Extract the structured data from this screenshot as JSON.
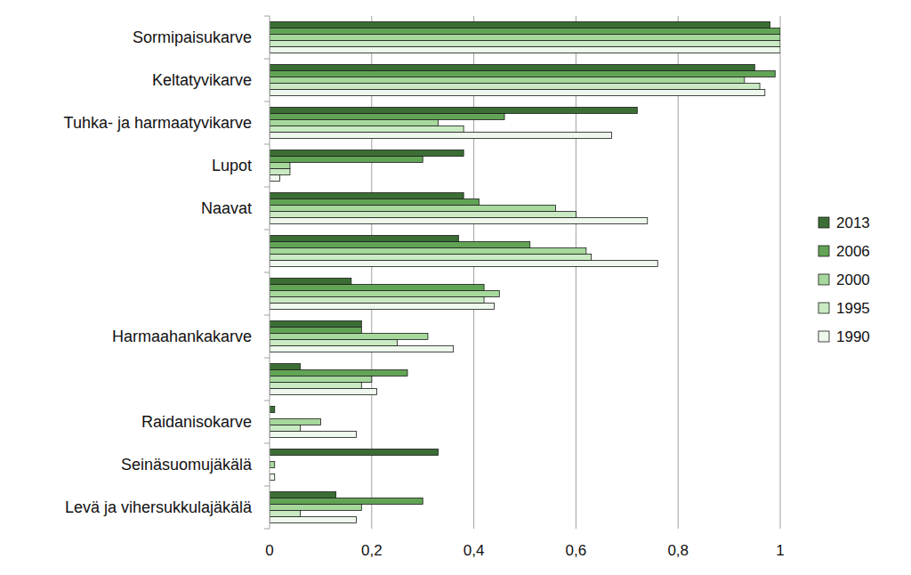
{
  "chart_data": {
    "type": "bar",
    "orientation": "horizontal",
    "categories": [
      "Sormipaisukarve",
      "Keltatyvikarve",
      "Tuhka- ja harmaatyvikarve",
      "Lupot",
      "Naavat",
      null,
      null,
      "Harmaahankakarve",
      null,
      "Raidanisokarve",
      "Seinäsuomujäkälä",
      "Levä ja vihersukkulajäkälä"
    ],
    "series": [
      {
        "name": "2013",
        "color": "#3b6e34",
        "values": [
          0.98,
          0.95,
          0.72,
          0.38,
          0.38,
          0.37,
          0.16,
          0.18,
          0.06,
          0.01,
          0.33,
          0.13
        ]
      },
      {
        "name": "2006",
        "color": "#62a455",
        "values": [
          1.0,
          0.99,
          0.46,
          0.3,
          0.41,
          0.51,
          0.42,
          0.18,
          0.27,
          0,
          0,
          0.3
        ]
      },
      {
        "name": "2000",
        "color": "#a6d89c",
        "values": [
          1.0,
          0.93,
          0.33,
          0.04,
          0.56,
          0.62,
          0.45,
          0.31,
          0.2,
          0.1,
          0.01,
          0.18
        ]
      },
      {
        "name": "1995",
        "color": "#c9eac2",
        "values": [
          1.0,
          0.96,
          0.38,
          0.04,
          0.6,
          0.63,
          0.42,
          0.25,
          0.18,
          0.06,
          0,
          0.06
        ]
      },
      {
        "name": "1990",
        "color": "#eef8ec",
        "values": [
          1.0,
          0.97,
          0.67,
          0.02,
          0.74,
          0.76,
          0.44,
          0.36,
          0.21,
          0.17,
          0.01,
          0.17
        ]
      }
    ],
    "xlim": [
      0,
      1
    ],
    "xticks": [
      0,
      {
        "value": 0.2,
        "label": "0,2"
      },
      {
        "value": 0.4,
        "label": "0,4"
      },
      {
        "value": 0.6,
        "label": "0,6"
      },
      {
        "value": 0.8,
        "label": "0,8"
      },
      1
    ],
    "grid": true,
    "legend": "right"
  }
}
